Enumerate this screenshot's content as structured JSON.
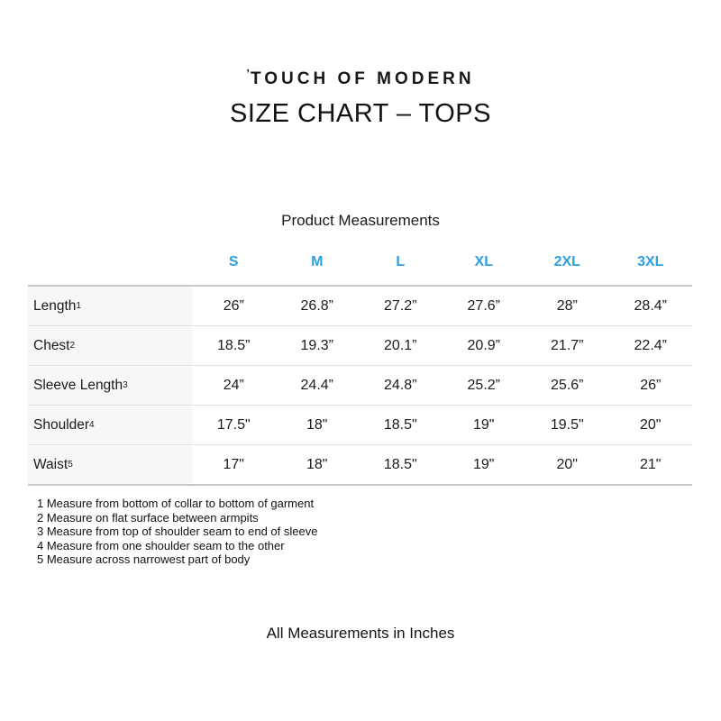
{
  "page": {
    "logo_mark": "ʼ",
    "logo_text": "TOUCH OF MODERN",
    "title": "SIZE CHART – TOPS",
    "section_heading": "Product Measurements",
    "bottom_note": "All Measurements in Inches"
  },
  "colors": {
    "accent_blue": "#2D9FE3",
    "label_column_bg": "#F7F7F7",
    "border_outer": "#C8C8C8",
    "border_inner": "#E2E2E2",
    "text": "#1B1B1B"
  },
  "table": {
    "columns": [
      "S",
      "M",
      "L",
      "XL",
      "2XL",
      "3XL"
    ],
    "rows": [
      {
        "label": "Length",
        "sup": "1",
        "values": [
          "26”",
          "26.8”",
          "27.2”",
          "27.6”",
          "28”",
          "28.4”"
        ]
      },
      {
        "label": "Chest",
        "sup": "2",
        "values": [
          "18.5”",
          "19.3”",
          "20.1”",
          "20.9”",
          "21.7”",
          "22.4”"
        ]
      },
      {
        "label": "Sleeve Length",
        "sup": "3",
        "values": [
          "24”",
          "24.4”",
          "24.8”",
          "25.2”",
          "25.6”",
          "26”"
        ]
      },
      {
        "label": "Shoulder",
        "sup": "4",
        "values": [
          "17.5\"",
          "18\"",
          "18.5\"",
          "19\"",
          "19.5\"",
          "20\""
        ]
      },
      {
        "label": "Waist",
        "sup": "5",
        "values": [
          "17\"",
          "18\"",
          "18.5\"",
          "19\"",
          "20\"",
          "21\""
        ]
      }
    ]
  },
  "footnotes": [
    "1 Measure from bottom of collar to bottom of garment",
    "2 Measure on flat surface between armpits",
    "3 Measure from top of shoulder seam to end of sleeve",
    "4 Measure from one shoulder seam to the other",
    "5 Measure across narrowest part of body"
  ]
}
